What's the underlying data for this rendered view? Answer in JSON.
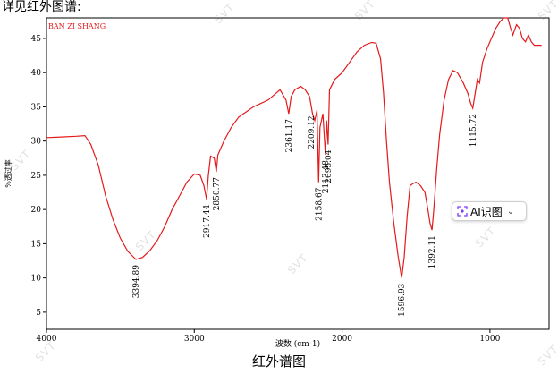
{
  "header_text": "详见红外图谱:",
  "caption": "红外谱图",
  "ai_button": {
    "label": "AI识图",
    "icon": "scan-icon",
    "chevron": "chevron-down-icon"
  },
  "watermark": "SVT",
  "colors": {
    "spectrum": "#e31a1c",
    "corner_label": "#e31a1c",
    "ai_accent": "#7a3cff"
  },
  "chart_data": {
    "type": "line",
    "title": "",
    "corner_label": "BAN ZI SHANG",
    "xlabel": "波数 (cm-1)",
    "ylabel": "%透过率",
    "xlim": [
      4000,
      600
    ],
    "ylim": [
      2.5,
      48
    ],
    "x_reversed": true,
    "grid": false,
    "x_ticks": [
      4000,
      3000,
      2000,
      1000
    ],
    "y_ticks": [
      5,
      10,
      15,
      20,
      25,
      30,
      35,
      40,
      45
    ],
    "series": [
      {
        "points": [
          [
            4000,
            30.5
          ],
          [
            3900,
            30.6
          ],
          [
            3800,
            30.7
          ],
          [
            3740,
            30.8
          ],
          [
            3700,
            29.5
          ],
          [
            3650,
            26.5
          ],
          [
            3600,
            22.0
          ],
          [
            3550,
            18.5
          ],
          [
            3500,
            15.8
          ],
          [
            3450,
            13.9
          ],
          [
            3395,
            12.7
          ],
          [
            3350,
            13.0
          ],
          [
            3300,
            14.0
          ],
          [
            3250,
            15.5
          ],
          [
            3200,
            17.5
          ],
          [
            3150,
            20.0
          ],
          [
            3100,
            22.0
          ],
          [
            3050,
            24.0
          ],
          [
            3000,
            25.2
          ],
          [
            2960,
            25.0
          ],
          [
            2935,
            23.5
          ],
          [
            2917,
            21.5
          ],
          [
            2905,
            25.0
          ],
          [
            2890,
            27.8
          ],
          [
            2865,
            27.5
          ],
          [
            2851,
            25.5
          ],
          [
            2840,
            28.0
          ],
          [
            2800,
            30.0
          ],
          [
            2750,
            32.0
          ],
          [
            2700,
            33.5
          ],
          [
            2600,
            35.0
          ],
          [
            2500,
            36.0
          ],
          [
            2420,
            37.5
          ],
          [
            2380,
            36.0
          ],
          [
            2361,
            34.0
          ],
          [
            2345,
            36.5
          ],
          [
            2320,
            37.5
          ],
          [
            2280,
            38.0
          ],
          [
            2250,
            37.5
          ],
          [
            2220,
            36.5
          ],
          [
            2200,
            34.0
          ],
          [
            2185,
            33.0
          ],
          [
            2170,
            34.5
          ],
          [
            2159,
            24.0
          ],
          [
            2150,
            32.0
          ],
          [
            2130,
            34.0
          ],
          [
            2113,
            28.0
          ],
          [
            2105,
            33.0
          ],
          [
            2095,
            29.5
          ],
          [
            2085,
            37.5
          ],
          [
            2050,
            39.0
          ],
          [
            2000,
            40.0
          ],
          [
            1950,
            41.5
          ],
          [
            1900,
            43.0
          ],
          [
            1850,
            44.0
          ],
          [
            1800,
            44.4
          ],
          [
            1770,
            44.3
          ],
          [
            1740,
            42.0
          ],
          [
            1720,
            37.0
          ],
          [
            1700,
            30.0
          ],
          [
            1680,
            24.0
          ],
          [
            1650,
            18.0
          ],
          [
            1620,
            13.0
          ],
          [
            1597,
            10.0
          ],
          [
            1580,
            13.0
          ],
          [
            1560,
            19.0
          ],
          [
            1540,
            23.5
          ],
          [
            1520,
            23.8
          ],
          [
            1500,
            24.0
          ],
          [
            1470,
            23.5
          ],
          [
            1440,
            22.5
          ],
          [
            1420,
            20.0
          ],
          [
            1405,
            18.0
          ],
          [
            1392,
            17.0
          ],
          [
            1380,
            20.0
          ],
          [
            1360,
            26.0
          ],
          [
            1340,
            31.0
          ],
          [
            1310,
            36.0
          ],
          [
            1280,
            39.0
          ],
          [
            1250,
            40.3
          ],
          [
            1220,
            40.0
          ],
          [
            1180,
            38.5
          ],
          [
            1150,
            37.0
          ],
          [
            1130,
            35.5
          ],
          [
            1116,
            34.8
          ],
          [
            1100,
            37.0
          ],
          [
            1085,
            39.0
          ],
          [
            1070,
            38.5
          ],
          [
            1050,
            41.5
          ],
          [
            1020,
            43.5
          ],
          [
            990,
            45.0
          ],
          [
            960,
            46.5
          ],
          [
            930,
            47.5
          ],
          [
            905,
            48.0
          ],
          [
            880,
            48.0
          ],
          [
            860,
            46.5
          ],
          [
            845,
            45.5
          ],
          [
            820,
            47.0
          ],
          [
            800,
            46.5
          ],
          [
            780,
            45.0
          ],
          [
            760,
            44.5
          ],
          [
            740,
            45.5
          ],
          [
            720,
            44.5
          ],
          [
            700,
            44.0
          ],
          [
            650,
            44.0
          ]
        ]
      }
    ],
    "annotations": [
      {
        "x": 3394.89,
        "y": 12.7,
        "label": "3394.89",
        "side": "below"
      },
      {
        "x": 2917.44,
        "y": 21.5,
        "label": "2917.44",
        "side": "below"
      },
      {
        "x": 2850.77,
        "y": 25.5,
        "label": "2850.77",
        "side": "below"
      },
      {
        "x": 2361.17,
        "y": 34.0,
        "label": "2361.17",
        "side": "below"
      },
      {
        "x": 2209.12,
        "y": 34.5,
        "label": "2209.12",
        "side": "below"
      },
      {
        "x": 2158.67,
        "y": 24.0,
        "label": "2158.67",
        "side": "below"
      },
      {
        "x": 2113.48,
        "y": 28.0,
        "label": "2113.48",
        "side": "below"
      },
      {
        "x": 2095.04,
        "y": 29.5,
        "label": "2095.04",
        "side": "below"
      },
      {
        "x": 1596.93,
        "y": 10.0,
        "label": "1596.93",
        "side": "below"
      },
      {
        "x": 1392.11,
        "y": 17.0,
        "label": "1392.11",
        "side": "below"
      },
      {
        "x": 1115.72,
        "y": 34.8,
        "label": "1115.72",
        "side": "below"
      }
    ]
  }
}
